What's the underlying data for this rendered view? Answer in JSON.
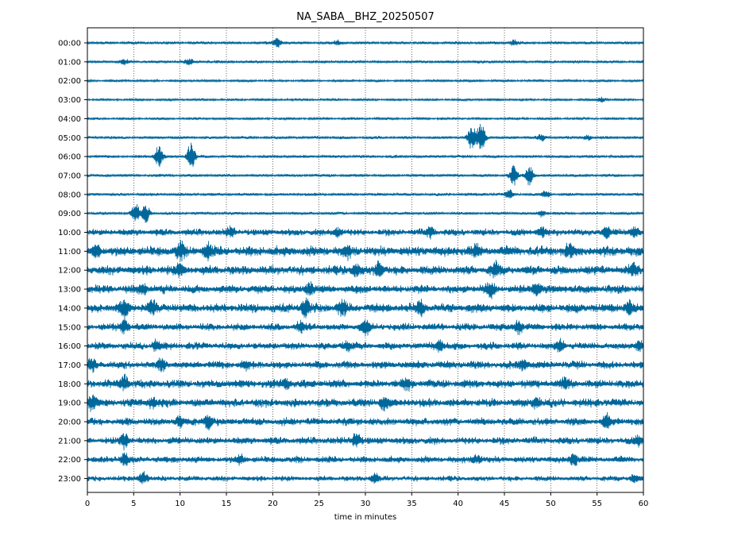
{
  "chart_data": {
    "type": "line",
    "title": "NA_SABA__BHZ_20250507",
    "xlabel": "time in minutes",
    "ylabel": "",
    "xlim": [
      0,
      60
    ],
    "x_ticks": [
      "0",
      "5",
      "10",
      "15",
      "20",
      "25",
      "30",
      "35",
      "40",
      "45",
      "50",
      "55",
      "60"
    ],
    "x_tick_values": [
      0,
      5,
      10,
      15,
      20,
      25,
      30,
      35,
      40,
      45,
      50,
      55,
      60
    ],
    "vertical_gridlines": "dotted",
    "trace_color": "#00679b",
    "rows": [
      {
        "label": "00:00",
        "amp": 0.12,
        "events": [
          {
            "t": 20.5,
            "a": 0.55
          },
          {
            "t": 27,
            "a": 0.25
          },
          {
            "t": 46,
            "a": 0.3
          }
        ]
      },
      {
        "label": "01:00",
        "amp": 0.12,
        "events": [
          {
            "t": 4,
            "a": 0.25
          },
          {
            "t": 11,
            "a": 0.3
          }
        ]
      },
      {
        "label": "02:00",
        "amp": 0.1,
        "events": []
      },
      {
        "label": "03:00",
        "amp": 0.1,
        "events": [
          {
            "t": 55.5,
            "a": 0.25
          }
        ]
      },
      {
        "label": "04:00",
        "amp": 0.1,
        "events": []
      },
      {
        "label": "05:00",
        "amp": 0.12,
        "events": [
          {
            "t": 41.5,
            "a": 1.4
          },
          {
            "t": 42.5,
            "a": 1.8
          },
          {
            "t": 49,
            "a": 0.35
          },
          {
            "t": 54,
            "a": 0.3
          }
        ]
      },
      {
        "label": "06:00",
        "amp": 0.12,
        "events": [
          {
            "t": 7.7,
            "a": 1.2
          },
          {
            "t": 11.2,
            "a": 1.6
          }
        ]
      },
      {
        "label": "07:00",
        "amp": 0.12,
        "events": [
          {
            "t": 46,
            "a": 1.1
          },
          {
            "t": 47.7,
            "a": 1.1
          }
        ]
      },
      {
        "label": "08:00",
        "amp": 0.12,
        "events": [
          {
            "t": 45.5,
            "a": 0.5
          },
          {
            "t": 49.5,
            "a": 0.35
          }
        ]
      },
      {
        "label": "09:00",
        "amp": 0.12,
        "events": [
          {
            "t": 5.2,
            "a": 1.1
          },
          {
            "t": 6.3,
            "a": 1.0
          },
          {
            "t": 49,
            "a": 0.4
          }
        ]
      },
      {
        "label": "10:00",
        "amp": 0.28,
        "events": [
          {
            "t": 15.5,
            "a": 0.5
          },
          {
            "t": 27,
            "a": 0.45
          },
          {
            "t": 37,
            "a": 0.5
          },
          {
            "t": 49,
            "a": 0.5
          },
          {
            "t": 56,
            "a": 0.55
          },
          {
            "t": 59,
            "a": 0.5
          }
        ]
      },
      {
        "label": "11:00",
        "amp": 0.42,
        "events": [
          {
            "t": 1,
            "a": 0.6
          },
          {
            "t": 10,
            "a": 0.8
          },
          {
            "t": 13,
            "a": 0.7
          },
          {
            "t": 28,
            "a": 0.5
          },
          {
            "t": 42,
            "a": 0.5
          },
          {
            "t": 52,
            "a": 0.55
          }
        ]
      },
      {
        "label": "12:00",
        "amp": 0.38,
        "events": [
          {
            "t": 10,
            "a": 0.6
          },
          {
            "t": 29,
            "a": 0.6
          },
          {
            "t": 31.5,
            "a": 0.8
          },
          {
            "t": 44,
            "a": 0.7
          },
          {
            "t": 59,
            "a": 0.5
          }
        ]
      },
      {
        "label": "13:00",
        "amp": 0.35,
        "events": [
          {
            "t": 6,
            "a": 0.6
          },
          {
            "t": 24,
            "a": 0.6
          },
          {
            "t": 43.5,
            "a": 0.7
          },
          {
            "t": 48.5,
            "a": 0.7
          }
        ]
      },
      {
        "label": "14:00",
        "amp": 0.38,
        "events": [
          {
            "t": 4,
            "a": 0.8
          },
          {
            "t": 7,
            "a": 0.6
          },
          {
            "t": 23.5,
            "a": 0.9
          },
          {
            "t": 27.5,
            "a": 0.8
          },
          {
            "t": 36,
            "a": 0.65
          },
          {
            "t": 58.5,
            "a": 0.6
          }
        ]
      },
      {
        "label": "15:00",
        "amp": 0.3,
        "events": [
          {
            "t": 4,
            "a": 0.7
          },
          {
            "t": 23,
            "a": 0.5
          },
          {
            "t": 30,
            "a": 0.8
          },
          {
            "t": 46.5,
            "a": 0.7
          }
        ]
      },
      {
        "label": "16:00",
        "amp": 0.3,
        "events": [
          {
            "t": 7.5,
            "a": 0.55
          },
          {
            "t": 28,
            "a": 0.5
          },
          {
            "t": 38,
            "a": 0.6
          },
          {
            "t": 51,
            "a": 0.6
          },
          {
            "t": 59.5,
            "a": 0.5
          }
        ]
      },
      {
        "label": "17:00",
        "amp": 0.32,
        "events": [
          {
            "t": 0.5,
            "a": 0.6
          },
          {
            "t": 8,
            "a": 0.5
          },
          {
            "t": 17,
            "a": 0.5
          },
          {
            "t": 47,
            "a": 0.55
          }
        ]
      },
      {
        "label": "18:00",
        "amp": 0.35,
        "events": [
          {
            "t": 4,
            "a": 0.75
          },
          {
            "t": 21.5,
            "a": 0.55
          },
          {
            "t": 34.5,
            "a": 0.55
          },
          {
            "t": 51.5,
            "a": 0.5
          }
        ]
      },
      {
        "label": "19:00",
        "amp": 0.35,
        "events": [
          {
            "t": 0.5,
            "a": 0.8
          },
          {
            "t": 7,
            "a": 0.55
          },
          {
            "t": 32,
            "a": 0.7
          },
          {
            "t": 48.5,
            "a": 0.55
          }
        ]
      },
      {
        "label": "20:00",
        "amp": 0.32,
        "events": [
          {
            "t": 10,
            "a": 0.55
          },
          {
            "t": 13,
            "a": 0.7
          },
          {
            "t": 56,
            "a": 0.65
          }
        ]
      },
      {
        "label": "21:00",
        "amp": 0.3,
        "events": [
          {
            "t": 4,
            "a": 0.75
          },
          {
            "t": 29,
            "a": 0.8
          },
          {
            "t": 59.5,
            "a": 0.4
          }
        ]
      },
      {
        "label": "22:00",
        "amp": 0.28,
        "events": [
          {
            "t": 4,
            "a": 0.6
          },
          {
            "t": 16.5,
            "a": 0.45
          },
          {
            "t": 42,
            "a": 0.45
          },
          {
            "t": 52.5,
            "a": 0.6
          }
        ]
      },
      {
        "label": "23:00",
        "amp": 0.22,
        "events": [
          {
            "t": 6,
            "a": 0.7
          },
          {
            "t": 31,
            "a": 0.5
          },
          {
            "t": 59,
            "a": 0.45
          }
        ]
      }
    ]
  }
}
